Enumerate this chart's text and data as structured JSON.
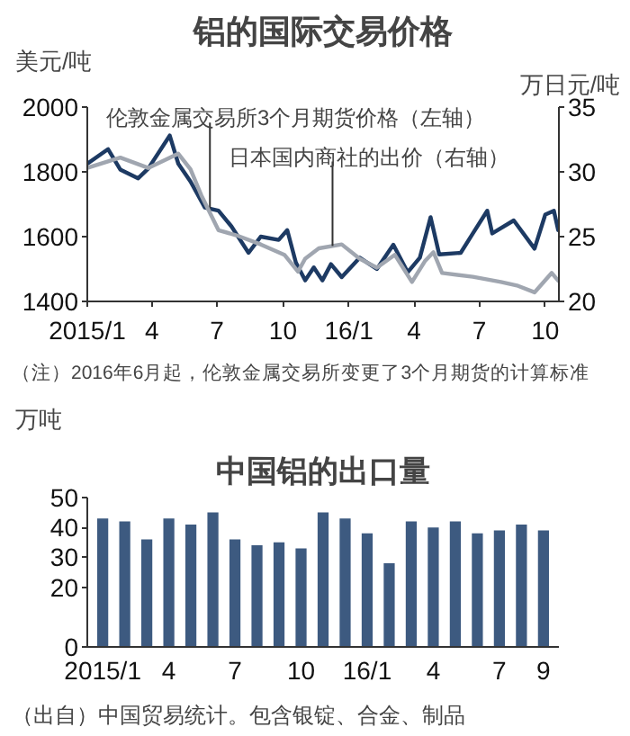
{
  "chart_data": [
    {
      "type": "line",
      "title": "铝的国际交易价格",
      "ylabel": "美元/吨",
      "y2label": "万日元/吨",
      "xlim": [
        "2015-01-01",
        "2016-10-20"
      ],
      "ylim": [
        1400,
        2000
      ],
      "yticks": [
        1400,
        1600,
        1800,
        2000
      ],
      "y2lim": [
        20,
        35
      ],
      "y2ticks": [
        20,
        25,
        30,
        35
      ],
      "xticks": [
        {
          "value": "2015-01-01",
          "label": "2015/1"
        },
        {
          "value": "2015-04-01",
          "label": "4"
        },
        {
          "value": "2015-07-01",
          "label": "7"
        },
        {
          "value": "2015-10-01",
          "label": "10"
        },
        {
          "value": "2016-01-01",
          "label": "16/1"
        },
        {
          "value": "2016-04-01",
          "label": "4"
        },
        {
          "value": "2016-07-01",
          "label": "7"
        },
        {
          "value": "2016-10-01",
          "label": "10"
        }
      ],
      "legend": false,
      "annotations": [
        "（注）2016年6月起，伦敦金属交易所变更了3个月期货的计算标准"
      ],
      "series": [
        {
          "name": "伦敦金属交易所3个月期货价格（左轴）",
          "color": "#1d3a63",
          "x": [
            "2015-01-01",
            "2015-01-30",
            "2015-02-16",
            "2015-03-13",
            "2015-03-27",
            "2015-04-26",
            "2015-05-08",
            "2015-05-25",
            "2015-06-14",
            "2015-07-03",
            "2015-07-21",
            "2015-08-14",
            "2015-08-31",
            "2015-09-25",
            "2015-10-07",
            "2015-10-19",
            "2015-11-01",
            "2015-11-13",
            "2015-11-25",
            "2015-12-07",
            "2015-12-22",
            "2016-01-16",
            "2016-02-09",
            "2016-03-03",
            "2016-03-23",
            "2016-04-09",
            "2016-04-24",
            "2016-05-06",
            "2016-06-05",
            "2016-06-22",
            "2016-07-12",
            "2016-07-19",
            "2016-08-18",
            "2016-09-16",
            "2016-10-01",
            "2016-10-13",
            "2016-10-19"
          ],
          "values": [
            1825,
            1870,
            1807,
            1780,
            1810,
            1912,
            1825,
            1770,
            1690,
            1680,
            1632,
            1550,
            1600,
            1590,
            1620,
            1520,
            1465,
            1505,
            1465,
            1515,
            1475,
            1535,
            1500,
            1575,
            1490,
            1535,
            1660,
            1545,
            1550,
            1610,
            1680,
            1610,
            1650,
            1563,
            1668,
            1680,
            1620
          ]
        },
        {
          "name": "日本国内商社的出价（右轴）",
          "color": "#a0a6b0",
          "axis": "y2",
          "x": [
            "2015-01-01",
            "2015-02-16",
            "2015-03-27",
            "2015-05-08",
            "2015-05-25",
            "2015-06-09",
            "2015-07-03",
            "2015-07-28",
            "2015-08-31",
            "2015-10-03",
            "2015-10-22",
            "2015-11-01",
            "2015-11-20",
            "2015-12-22",
            "2016-01-16",
            "2016-02-09",
            "2016-03-05",
            "2016-03-29",
            "2016-04-16",
            "2016-04-28",
            "2016-05-10",
            "2016-06-22",
            "2016-07-31",
            "2016-08-24",
            "2016-09-16",
            "2016-10-10",
            "2016-10-19"
          ],
          "values": [
            30.3,
            31.1,
            30.3,
            31.4,
            30.2,
            28.2,
            25.5,
            25.1,
            24.4,
            23.6,
            22.3,
            23.3,
            24.1,
            24.4,
            23.3,
            22.6,
            23.6,
            21.5,
            23.1,
            23.8,
            22.2,
            21.9,
            21.5,
            21.2,
            20.7,
            22.2,
            21.6
          ]
        }
      ]
    },
    {
      "type": "bar",
      "title": "中国铝的出口量",
      "ylabel": "万吨",
      "categories": [
        "2015/1",
        null,
        null,
        "4",
        null,
        null,
        "7",
        null,
        null,
        "10",
        null,
        null,
        "16/1",
        null,
        null,
        "4",
        null,
        null,
        "7",
        null,
        "9"
      ],
      "ylim": [
        0,
        50
      ],
      "yticks": [
        0,
        20,
        30,
        40,
        50
      ],
      "annotations": [
        "（出自）中国贸易统计。包含银锭、合金、制品"
      ],
      "series": [
        {
          "color": "#3d5a80",
          "values": [
            43,
            42,
            36,
            43,
            41,
            45,
            36,
            34,
            35,
            33,
            45,
            43,
            38,
            28,
            42,
            40,
            42,
            38,
            39,
            41,
            39
          ]
        }
      ]
    }
  ]
}
